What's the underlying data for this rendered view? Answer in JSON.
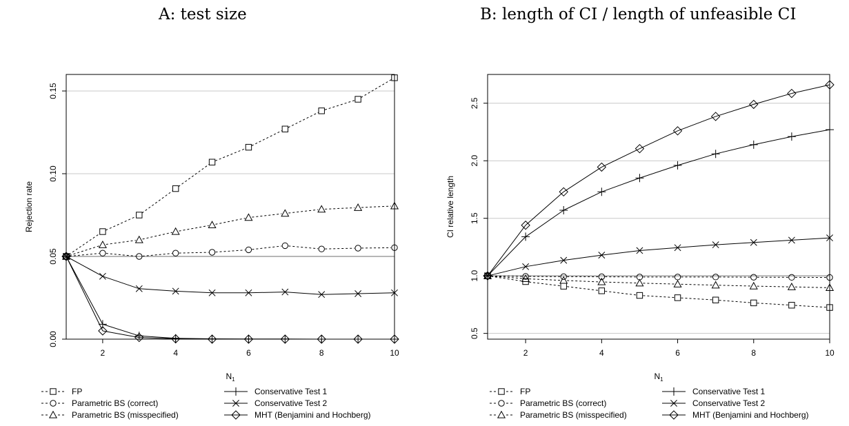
{
  "chart_data": [
    {
      "type": "line",
      "title": "A: test size",
      "xlabel": "N",
      "xlabel_sub": "1",
      "ylabel": "Rejection rate",
      "xlim": [
        1,
        10
      ],
      "ylim": [
        0,
        0.16
      ],
      "x_ticks": [
        2,
        4,
        6,
        8,
        10
      ],
      "x_tick_labels": [
        "2",
        "4",
        "6",
        "8",
        "10"
      ],
      "y_ticks": [
        0,
        0.05,
        0.1,
        0.15
      ],
      "y_tick_labels": [
        "0.00",
        "0.05",
        "0.10",
        "0.15"
      ],
      "reference_line": 0.05,
      "grid": "horizontal at y ticks",
      "x": [
        1,
        2,
        3,
        4,
        5,
        6,
        7,
        8,
        9,
        10
      ],
      "series": [
        {
          "name": "FP",
          "marker": "square",
          "dash": "dashed",
          "values": [
            0.05,
            0.065,
            0.075,
            0.091,
            0.107,
            0.116,
            0.127,
            0.138,
            0.145,
            0.158
          ]
        },
        {
          "name": "Parametric BS (correct)",
          "marker": "circle",
          "dash": "dashed",
          "values": [
            0.05,
            0.052,
            0.05,
            0.052,
            0.0525,
            0.054,
            0.0565,
            0.0545,
            0.055,
            0.0553
          ]
        },
        {
          "name": "Parametric BS (misspecified)",
          "marker": "triangle",
          "dash": "dashed",
          "values": [
            0.05,
            0.057,
            0.06,
            0.065,
            0.069,
            0.0735,
            0.076,
            0.0785,
            0.0795,
            0.0805
          ]
        },
        {
          "name": "Conservative Test 1",
          "marker": "plus",
          "dash": "solid",
          "values": [
            0.05,
            0.009,
            0.002,
            0.0005,
            0.0002,
            0.0001,
            0.0001,
            0.0,
            0.0,
            0.0
          ]
        },
        {
          "name": "Conservative Test 2",
          "marker": "cross",
          "dash": "solid",
          "values": [
            0.05,
            0.038,
            0.0305,
            0.029,
            0.028,
            0.028,
            0.0285,
            0.027,
            0.0275,
            0.028
          ]
        },
        {
          "name": "MHT (Benjamini and Hochberg)",
          "marker": "diamond",
          "dash": "solid",
          "values": [
            0.05,
            0.005,
            0.001,
            0.0002,
            0.0,
            0.0,
            0.0,
            0.0,
            0.0,
            0.0
          ]
        }
      ]
    },
    {
      "type": "line",
      "title": "B: length of CI / length of unfeasible CI",
      "xlabel": "N",
      "xlabel_sub": "1",
      "ylabel": "CI relative length",
      "xlim": [
        1,
        10
      ],
      "ylim": [
        0.45,
        2.75
      ],
      "x_ticks": [
        2,
        4,
        6,
        8,
        10
      ],
      "x_tick_labels": [
        "2",
        "4",
        "6",
        "8",
        "10"
      ],
      "y_ticks": [
        0.5,
        1.0,
        1.5,
        2.0,
        2.5
      ],
      "y_tick_labels": [
        "0.5",
        "1.0",
        "1.5",
        "2.0",
        "2.5"
      ],
      "reference_line": 1.0,
      "grid": "horizontal at y ticks",
      "x": [
        1,
        2,
        3,
        4,
        5,
        6,
        7,
        8,
        9,
        10
      ],
      "series": [
        {
          "name": "FP",
          "marker": "square",
          "dash": "dashed",
          "values": [
            1.0,
            0.95,
            0.91,
            0.87,
            0.83,
            0.81,
            0.79,
            0.765,
            0.745,
            0.725
          ]
        },
        {
          "name": "Parametric BS (correct)",
          "marker": "circle",
          "dash": "dashed",
          "values": [
            1.0,
            0.995,
            0.993,
            0.992,
            0.99,
            0.99,
            0.99,
            0.988,
            0.987,
            0.986
          ]
        },
        {
          "name": "Parametric BS (misspecified)",
          "marker": "triangle",
          "dash": "dashed",
          "values": [
            1.0,
            0.975,
            0.96,
            0.947,
            0.937,
            0.928,
            0.919,
            0.911,
            0.904,
            0.897
          ]
        },
        {
          "name": "Conservative Test 1",
          "marker": "plus",
          "dash": "solid",
          "values": [
            1.0,
            1.34,
            1.57,
            1.73,
            1.85,
            1.96,
            2.06,
            2.14,
            2.21,
            2.27
          ]
        },
        {
          "name": "Conservative Test 2",
          "marker": "cross",
          "dash": "solid",
          "values": [
            1.0,
            1.08,
            1.135,
            1.18,
            1.22,
            1.245,
            1.27,
            1.29,
            1.31,
            1.33
          ]
        },
        {
          "name": "MHT (Benjamini and Hochberg)",
          "marker": "diamond",
          "dash": "solid",
          "values": [
            1.0,
            1.44,
            1.73,
            1.945,
            2.105,
            2.26,
            2.385,
            2.49,
            2.585,
            2.66
          ]
        }
      ]
    }
  ]
}
